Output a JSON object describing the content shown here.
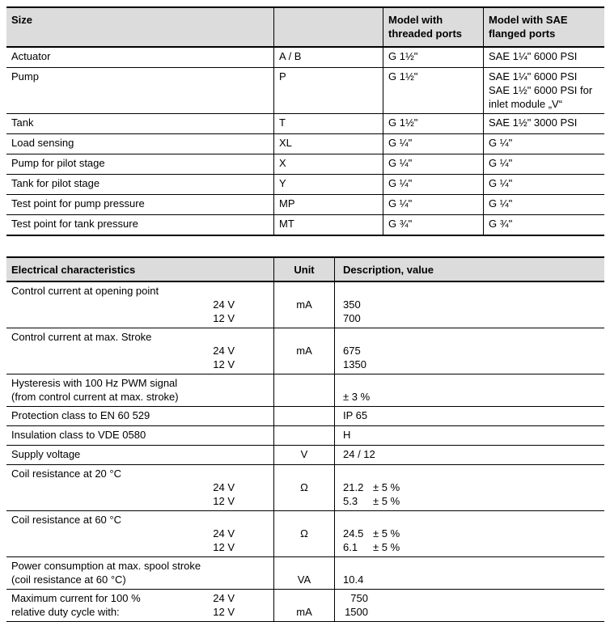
{
  "colors": {
    "header_bg": "#dcdcdc",
    "border": "#000000",
    "text": "#000000",
    "page_bg": "#ffffff"
  },
  "size_table": {
    "header": {
      "col1": "Size",
      "col2": "",
      "col3": "Model with\nthreaded ports",
      "col4": "Model with SAE\nflanged ports"
    },
    "rows": [
      {
        "label": "Actuator",
        "code": "A / B",
        "threaded": "G 1½\"",
        "flanged": "SAE 1¼\" 6000 PSI"
      },
      {
        "label": "Pump",
        "code": "P",
        "threaded": "G 1½\"",
        "flanged": "SAE 1¼\" 6000 PSI\nSAE 1½\" 6000 PSI for\ninlet module „V“"
      },
      {
        "label": "Tank",
        "code": "T",
        "threaded": "G 1½\"",
        "flanged": "SAE 1½\" 3000 PSI"
      },
      {
        "label": "Load sensing",
        "code": "XL",
        "threaded": "G ¼\"",
        "flanged": "G ¼\""
      },
      {
        "label": "Pump for pilot stage",
        "code": "X",
        "threaded": "G ¼\"",
        "flanged": "G ¼\""
      },
      {
        "label": "Tank for pilot stage",
        "code": "Y",
        "threaded": "G ¼\"",
        "flanged": "G ¼\""
      },
      {
        "label": "Test point for pump pressure",
        "code": "MP",
        "threaded": "G ¼\"",
        "flanged": "G ¼\""
      },
      {
        "label": "Test point for tank pressure",
        "code": "MT",
        "threaded": "G ¾\"",
        "flanged": "G ¾\""
      }
    ]
  },
  "electrical_table": {
    "header": {
      "col1": "Electrical characteristics",
      "col2": "Unit",
      "col3": "Description, value"
    },
    "rows": [
      {
        "label": "Control current at opening point",
        "v1": "24 V",
        "v2": "12 V",
        "unit": "mA",
        "values": "350\n700"
      },
      {
        "label": "Control current at max. Stroke",
        "v1": "24 V",
        "v2": "12 V",
        "unit": "mA",
        "values": "675\n1350"
      },
      {
        "label": "Hysteresis with 100 Hz PWM signal\n(from control current at max. stroke)",
        "unit": "",
        "value": "± 3 %"
      },
      {
        "label": "Protection class to EN 60 529",
        "unit": "",
        "value": "IP 65"
      },
      {
        "label": "Insulation class to VDE 0580",
        "unit": "",
        "value": "H"
      },
      {
        "label": "Supply voltage",
        "unit": "V",
        "value": "24 / 12"
      },
      {
        "label": "Coil resistance at 20 °C",
        "v1": "24 V",
        "v2": "12 V",
        "unit": "Ω",
        "val1": "21.2",
        "tol1": "± 5 %",
        "val2": "5.3",
        "tol2": "± 5 %"
      },
      {
        "label": "Coil resistance at 60 °C",
        "v1": "24 V",
        "v2": "12 V",
        "unit": "Ω",
        "val1": "24.5",
        "tol1": "± 5 %",
        "val2": "6.1",
        "tol2": "± 5 %"
      },
      {
        "label": "Power consumption at max. spool stroke\n(coil resistance at 60 °C)",
        "unit": "VA",
        "value": "10.4"
      },
      {
        "label1": "Maximum current for 100 %",
        "label2": "relative duty cycle with:",
        "v1": "24 V",
        "v2": "12 V",
        "unit": "mA",
        "val1": "750",
        "val2": "1500"
      }
    ]
  }
}
